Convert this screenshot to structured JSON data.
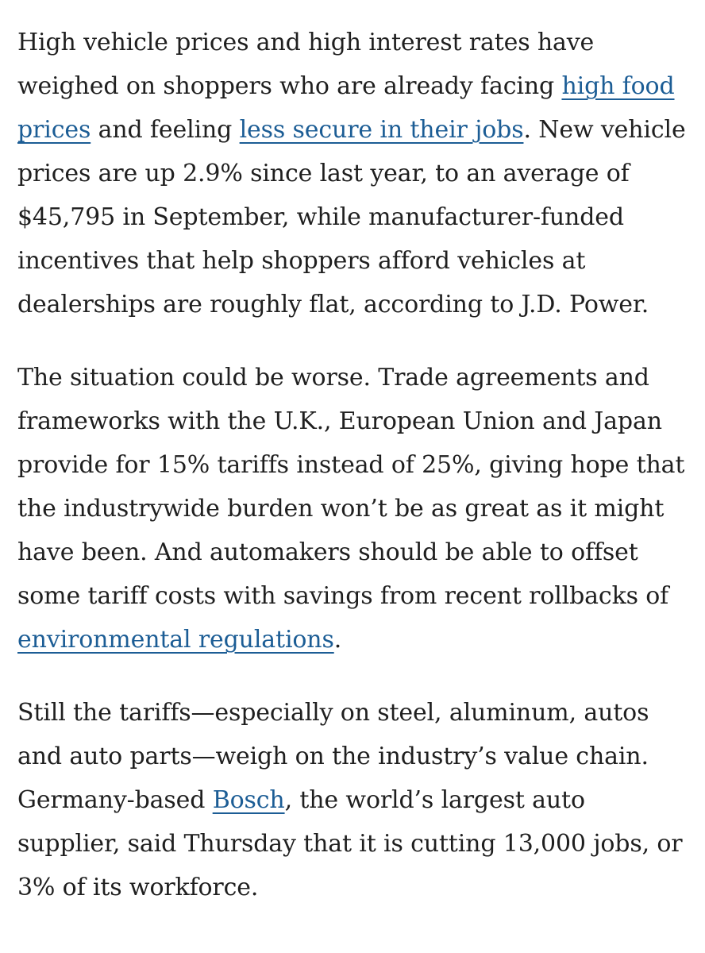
{
  "article": {
    "p1": {
      "t1": "High vehicle prices and high interest rates have weighed on shoppers who are already facing ",
      "link1": "high food prices",
      "t2": " and feeling ",
      "link2": "less secure in their jobs",
      "t3": ". New vehicle prices are up 2.9% since last year, to an average of $45,795 in September, while manufacturer-funded incentives that help shoppers afford vehicles at dealerships are roughly flat, according to J.D. Power."
    },
    "p2": {
      "t1": "The situation could be worse. Trade agreements and frameworks with the U.K., European Union and Japan provide for 15% tariffs instead of 25%, giving hope that the industrywide burden won’t be as great as it might have been. And automakers should be able to offset some tariff costs with savings from recent rollbacks of ",
      "link1": "environmental regulations",
      "t2": "."
    },
    "p3": {
      "t1": "Still the tariffs—especially on steel, aluminum, autos and auto parts—weigh on the industry’s value chain. Germany-based ",
      "link1": "Bosch",
      "t2": ", the world’s largest auto supplier, said Thursday that it is cutting 13,000 jobs, or 3% of its workforce."
    }
  }
}
